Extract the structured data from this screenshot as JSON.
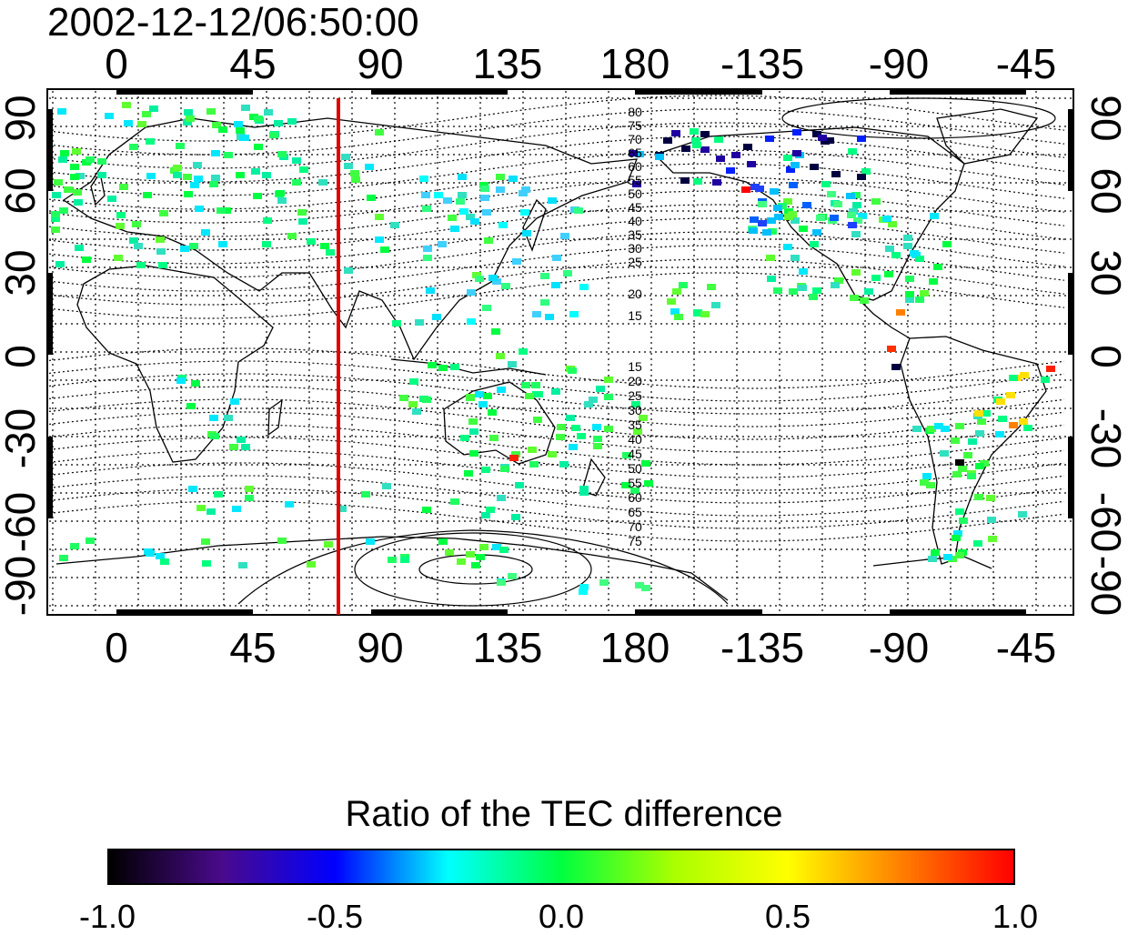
{
  "timestamp": "2002-12-12/06:50:00",
  "map": {
    "top_lon_labels": [
      "0",
      "45",
      "90",
      "135",
      "180",
      "-135",
      "-90",
      "-45"
    ],
    "bottom_lon_labels": [
      "0",
      "45",
      "90",
      "135",
      "180",
      "-135",
      "-90",
      "-45"
    ],
    "left_lat_labels": [
      "90",
      "60",
      "30",
      "0",
      "-30",
      "-60",
      "-90"
    ],
    "right_lat_labels": [
      "90",
      "60",
      "30",
      "0",
      "-30",
      "-60",
      "-90"
    ],
    "contour_labels_north": [
      "80",
      "75",
      "70",
      "65",
      "60",
      "55",
      "50",
      "45",
      "40",
      "35",
      "30",
      "25",
      "20",
      "15"
    ],
    "contour_labels_south": [
      "15",
      "20",
      "25",
      "30",
      "35",
      "40",
      "45",
      "50",
      "55",
      "60",
      "65",
      "70",
      "75"
    ],
    "marker_line_color": "#e00000",
    "coastline_color": "#000000"
  },
  "colorbar": {
    "title": "Ratio of the TEC difference",
    "tick_labels": [
      "-1.0",
      "-0.5",
      "0.0",
      "0.5",
      "1.0"
    ],
    "colors": [
      "#000000",
      "#4a0a8c",
      "#0000ff",
      "#00ffff",
      "#00ff40",
      "#aaff00",
      "#ffff00",
      "#ff8000",
      "#ff0000"
    ]
  }
}
